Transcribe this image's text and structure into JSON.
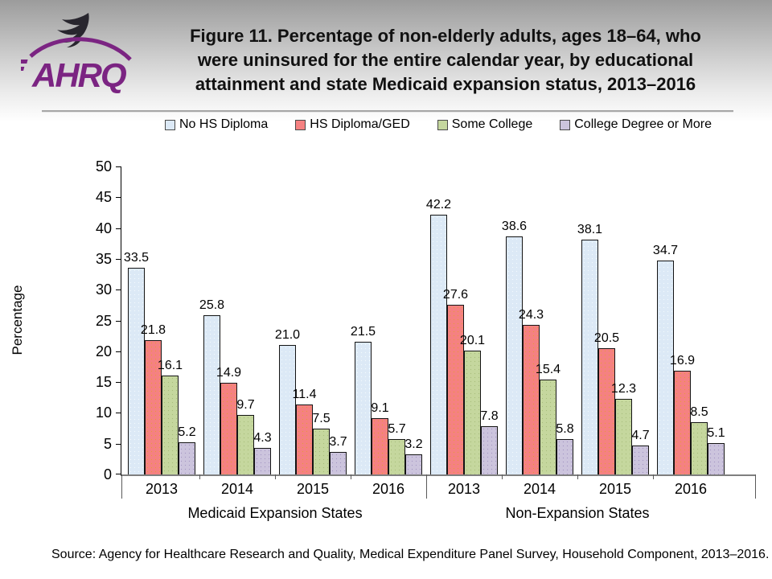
{
  "header": {
    "logo": {
      "org_abbrev": "AHRQ",
      "brand_color": "#7b2482",
      "eagle_color": "#28262e"
    },
    "title_lines": [
      "Figure 11. Percentage of non-elderly adults, ages 18–64, who",
      "were uninsured for the entire calendar year, by educational",
      "attainment and state Medicaid expansion status, 2013–2016"
    ]
  },
  "chart_data": {
    "type": "bar",
    "title": "Figure 11. Percentage of non-elderly adults, ages 18–64, who were uninsured for the entire calendar year, by educational attainment and state Medicaid expansion status, 2013–2016",
    "xlabel": "",
    "ylabel": "Percentage",
    "ylim": [
      0,
      50
    ],
    "yticks": [
      0,
      5,
      10,
      15,
      20,
      25,
      30,
      35,
      40,
      45,
      50
    ],
    "grid": false,
    "legend_position": "top",
    "categories": [
      "2013",
      "2014",
      "2015",
      "2016",
      "2013",
      "2014",
      "2015",
      "2016"
    ],
    "group_sections": [
      {
        "label": "Medicaid Expansion States",
        "category_indexes": [
          0,
          1,
          2,
          3
        ]
      },
      {
        "label": "Non-Expansion States",
        "category_indexes": [
          4,
          5,
          6,
          7
        ]
      }
    ],
    "series": [
      {
        "name": "No HS Diploma",
        "color": "#dce9f6",
        "dot_color": "#f3f9fd",
        "values": [
          33.5,
          25.8,
          21.0,
          21.5,
          42.2,
          38.6,
          38.1,
          34.7
        ]
      },
      {
        "name": "HS Diploma/GED",
        "color": "#f58181",
        "dot_color": "#e79a3c",
        "values": [
          21.8,
          14.9,
          11.4,
          9.1,
          27.6,
          24.3,
          20.5,
          16.9
        ]
      },
      {
        "name": "Some College",
        "color": "#c5d79e",
        "dot_color": "#a8bd7c",
        "values": [
          16.1,
          9.7,
          7.5,
          5.7,
          20.1,
          15.4,
          12.3,
          8.5
        ]
      },
      {
        "name": "College Degree or More",
        "color": "#ccc4dd",
        "dot_color": "#a395c2",
        "values": [
          5.2,
          4.3,
          3.7,
          3.2,
          7.8,
          5.8,
          4.7,
          5.1
        ]
      }
    ]
  },
  "source": "Source: Agency for Healthcare Research and Quality, Medical Expenditure Panel Survey, Household Component, 2013–2016."
}
